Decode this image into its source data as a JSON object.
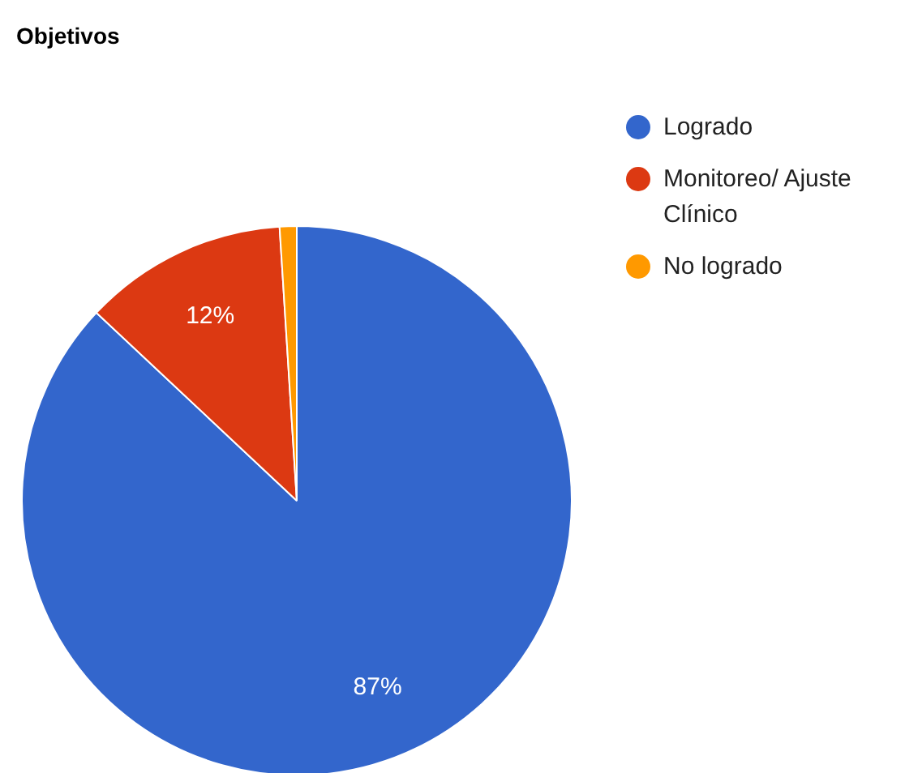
{
  "chart_data": {
    "type": "pie",
    "title": "Objetivos",
    "categories": [
      "Logrado",
      "Monitoreo/ Ajuste Clínico",
      "No logrado"
    ],
    "values": [
      87,
      12,
      1
    ],
    "colors": [
      "#3366cc",
      "#dc3912",
      "#ff9900"
    ],
    "value_labels": [
      "87%",
      "12%",
      null
    ],
    "legend": "top right"
  }
}
